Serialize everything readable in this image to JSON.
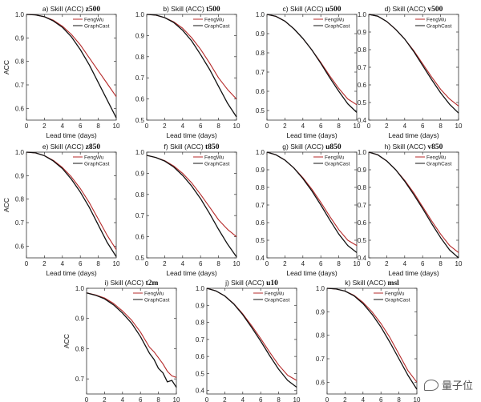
{
  "colors": {
    "fengwu": "#b52a2a",
    "graphcast": "#111111"
  },
  "legend_labels": [
    "FengWu",
    "GraphCast"
  ],
  "watermark": "量子位",
  "chart_data": [
    {
      "type": "line",
      "panel_label": "a) Skill (ACC) ",
      "variable": "z500",
      "ylabel": "ACC",
      "xlabel": "Lead time (days)",
      "xlim": [
        0,
        10
      ],
      "ylim": [
        0.55,
        1.0
      ],
      "yticks": [
        "0.6",
        "0.7",
        "0.8",
        "0.9",
        "1.0"
      ],
      "xticks": [
        "0",
        "2",
        "4",
        "6",
        "8",
        "10"
      ],
      "x": [
        0,
        1,
        2,
        3,
        4,
        5,
        6,
        7,
        8,
        9,
        10
      ],
      "series": [
        {
          "name": "FengWu",
          "values": [
            1.0,
            0.998,
            0.99,
            0.975,
            0.95,
            0.915,
            0.87,
            0.815,
            0.76,
            0.705,
            0.65
          ]
        },
        {
          "name": "GraphCast",
          "values": [
            1.0,
            0.998,
            0.99,
            0.972,
            0.945,
            0.905,
            0.85,
            0.785,
            0.71,
            0.635,
            0.56
          ]
        }
      ]
    },
    {
      "type": "line",
      "panel_label": "b) Skill (ACC) ",
      "variable": "t500",
      "ylabel": "",
      "xlabel": "Lead time (days)",
      "xlim": [
        0,
        10
      ],
      "ylim": [
        0.5,
        1.0
      ],
      "yticks": [
        "0.5",
        "0.6",
        "0.7",
        "0.8",
        "0.9",
        "1.0"
      ],
      "xticks": [
        "0",
        "2",
        "4",
        "6",
        "8",
        "10"
      ],
      "x": [
        0,
        1,
        2,
        3,
        4,
        5,
        6,
        7,
        8,
        9,
        10
      ],
      "series": [
        {
          "name": "FengWu",
          "values": [
            1.0,
            0.997,
            0.985,
            0.965,
            0.935,
            0.89,
            0.835,
            0.77,
            0.7,
            0.645,
            0.6
          ]
        },
        {
          "name": "GraphCast",
          "values": [
            1.0,
            0.997,
            0.985,
            0.962,
            0.925,
            0.875,
            0.81,
            0.74,
            0.66,
            0.58,
            0.515
          ]
        }
      ]
    },
    {
      "type": "line",
      "panel_label": "c) Skill (ACC) ",
      "variable": "u500",
      "ylabel": "",
      "xlabel": "Lead time (days)",
      "xlim": [
        0,
        10
      ],
      "ylim": [
        0.45,
        1.0
      ],
      "yticks": [
        "0.5",
        "0.6",
        "0.7",
        "0.8",
        "0.9",
        "1.0"
      ],
      "xticks": [
        "0",
        "2",
        "4",
        "6",
        "8",
        "10"
      ],
      "x": [
        0,
        1,
        2,
        3,
        4,
        5,
        6,
        7,
        8,
        9,
        10
      ],
      "series": [
        {
          "name": "FengWu",
          "values": [
            1.0,
            0.99,
            0.965,
            0.925,
            0.875,
            0.815,
            0.75,
            0.68,
            0.615,
            0.56,
            0.53
          ]
        },
        {
          "name": "GraphCast",
          "values": [
            1.0,
            0.99,
            0.965,
            0.925,
            0.875,
            0.815,
            0.745,
            0.67,
            0.6,
            0.535,
            0.49
          ]
        }
      ]
    },
    {
      "type": "line",
      "panel_label": "d) Skill (ACC) ",
      "variable": "v500",
      "ylabel": "",
      "xlabel": "Lead time (days)",
      "xlim": [
        0,
        10
      ],
      "ylim": [
        0.4,
        1.0
      ],
      "yticks": [
        "0.4",
        "0.5",
        "0.6",
        "0.7",
        "0.8",
        "0.9",
        "1.0"
      ],
      "xticks": [
        "0",
        "2",
        "4",
        "6",
        "8",
        "10"
      ],
      "x": [
        0,
        1,
        2,
        3,
        4,
        5,
        6,
        7,
        8,
        9,
        10
      ],
      "series": [
        {
          "name": "FengWu",
          "values": [
            1.0,
            0.99,
            0.96,
            0.915,
            0.86,
            0.795,
            0.72,
            0.645,
            0.575,
            0.52,
            0.48
          ]
        },
        {
          "name": "GraphCast",
          "values": [
            1.0,
            0.99,
            0.96,
            0.915,
            0.86,
            0.79,
            0.71,
            0.63,
            0.555,
            0.49,
            0.44
          ]
        }
      ]
    },
    {
      "type": "line",
      "panel_label": "e) Skill (ACC) ",
      "variable": "z850",
      "ylabel": "ACC",
      "xlabel": "Lead time (days)",
      "xlim": [
        0,
        10
      ],
      "ylim": [
        0.55,
        1.0
      ],
      "yticks": [
        "0.6",
        "0.7",
        "0.8",
        "0.9",
        "1.0"
      ],
      "xticks": [
        "0",
        "2",
        "4",
        "6",
        "8",
        "10"
      ],
      "x": [
        0,
        1,
        2,
        3,
        4,
        5,
        6,
        7,
        8,
        9,
        10
      ],
      "series": [
        {
          "name": "FengWu",
          "values": [
            1.0,
            0.997,
            0.985,
            0.965,
            0.935,
            0.895,
            0.845,
            0.785,
            0.715,
            0.645,
            0.585
          ]
        },
        {
          "name": "GraphCast",
          "values": [
            1.0,
            0.997,
            0.985,
            0.962,
            0.93,
            0.885,
            0.83,
            0.765,
            0.69,
            0.615,
            0.555
          ]
        }
      ]
    },
    {
      "type": "line",
      "panel_label": "f) Skill (ACC) ",
      "variable": "t850",
      "ylabel": "",
      "xlabel": "Lead time (days)",
      "xlim": [
        0,
        10
      ],
      "ylim": [
        0.5,
        1.0
      ],
      "yticks": [
        "0.5",
        "0.6",
        "0.7",
        "0.8",
        "0.9",
        "1.0"
      ],
      "xticks": [
        "0",
        "2",
        "4",
        "6",
        "8",
        "10"
      ],
      "x": [
        0,
        1,
        2,
        3,
        4,
        5,
        6,
        7,
        8,
        9,
        10
      ],
      "series": [
        {
          "name": "FengWu",
          "values": [
            0.985,
            0.975,
            0.96,
            0.935,
            0.9,
            0.855,
            0.8,
            0.74,
            0.68,
            0.635,
            0.6
          ]
        },
        {
          "name": "GraphCast",
          "values": [
            0.985,
            0.975,
            0.958,
            0.93,
            0.89,
            0.84,
            0.78,
            0.71,
            0.635,
            0.565,
            0.505
          ]
        }
      ]
    },
    {
      "type": "line",
      "panel_label": "g) Skill (ACC) ",
      "variable": "u850",
      "ylabel": "",
      "xlabel": "Lead time (days)",
      "xlim": [
        0,
        10
      ],
      "ylim": [
        0.4,
        1.0
      ],
      "yticks": [
        "0.4",
        "0.5",
        "0.6",
        "0.7",
        "0.8",
        "0.9",
        "1.0"
      ],
      "xticks": [
        "0",
        "2",
        "4",
        "6",
        "8",
        "10"
      ],
      "x": [
        0,
        1,
        2,
        3,
        4,
        5,
        6,
        7,
        8,
        9,
        10
      ],
      "series": [
        {
          "name": "FengWu",
          "values": [
            1.0,
            0.985,
            0.955,
            0.91,
            0.855,
            0.79,
            0.715,
            0.635,
            0.56,
            0.5,
            0.47
          ]
        },
        {
          "name": "GraphCast",
          "values": [
            1.0,
            0.985,
            0.955,
            0.91,
            0.85,
            0.78,
            0.7,
            0.615,
            0.535,
            0.47,
            0.43
          ]
        }
      ]
    },
    {
      "type": "line",
      "panel_label": "h) Skill (ACC) ",
      "variable": "v850",
      "ylabel": "",
      "xlabel": "Lead time (days)",
      "xlim": [
        0,
        10
      ],
      "ylim": [
        0.4,
        1.0
      ],
      "yticks": [
        "0.4",
        "0.5",
        "0.6",
        "0.7",
        "0.8",
        "0.9",
        "1.0"
      ],
      "xticks": [
        "0",
        "2",
        "4",
        "6",
        "8",
        "10"
      ],
      "x": [
        0,
        1,
        2,
        3,
        4,
        5,
        6,
        7,
        8,
        9,
        10
      ],
      "series": [
        {
          "name": "FengWu",
          "values": [
            1.0,
            0.985,
            0.95,
            0.9,
            0.84,
            0.77,
            0.69,
            0.61,
            0.535,
            0.47,
            0.43
          ]
        },
        {
          "name": "GraphCast",
          "values": [
            1.0,
            0.985,
            0.95,
            0.9,
            0.835,
            0.76,
            0.68,
            0.595,
            0.515,
            0.445,
            0.4
          ]
        }
      ]
    },
    {
      "type": "line",
      "panel_label": "i) Skill (ACC) ",
      "variable": "t2m",
      "ylabel": "ACC",
      "xlabel": "Lead time (days)",
      "xlim": [
        0,
        10
      ],
      "ylim": [
        0.65,
        1.0
      ],
      "yticks": [
        "0.7",
        "0.8",
        "0.9",
        "1.0"
      ],
      "xticks": [
        "0",
        "2",
        "4",
        "6",
        "8",
        "10"
      ],
      "x": [
        0,
        1,
        2,
        3,
        4,
        5,
        6,
        7,
        7.5,
        8,
        8.5,
        9,
        9.5,
        10
      ],
      "series": [
        {
          "name": "FengWu",
          "values": [
            0.985,
            0.978,
            0.968,
            0.95,
            0.925,
            0.895,
            0.855,
            0.805,
            0.79,
            0.77,
            0.75,
            0.725,
            0.71,
            0.705
          ]
        },
        {
          "name": "GraphCast",
          "values": [
            0.985,
            0.977,
            0.965,
            0.945,
            0.918,
            0.885,
            0.84,
            0.785,
            0.765,
            0.735,
            0.72,
            0.69,
            0.695,
            0.672
          ]
        }
      ]
    },
    {
      "type": "line",
      "panel_label": "j) Skill (ACC) ",
      "variable": "u10",
      "ylabel": "",
      "xlabel": "Lead time (days)",
      "xlim": [
        0,
        10
      ],
      "ylim": [
        0.38,
        1.0
      ],
      "yticks": [
        "0.4",
        "0.5",
        "0.6",
        "0.7",
        "0.8",
        "0.9",
        "1.0"
      ],
      "xticks": [
        "0",
        "2",
        "4",
        "6",
        "8",
        "10"
      ],
      "x": [
        0,
        1,
        2,
        3,
        4,
        5,
        6,
        7,
        8,
        9,
        10
      ],
      "series": [
        {
          "name": "FengWu",
          "values": [
            1.0,
            0.985,
            0.955,
            0.91,
            0.85,
            0.78,
            0.705,
            0.625,
            0.55,
            0.49,
            0.46
          ]
        },
        {
          "name": "GraphCast",
          "values": [
            1.0,
            0.985,
            0.955,
            0.908,
            0.845,
            0.77,
            0.69,
            0.605,
            0.525,
            0.46,
            0.42
          ]
        }
      ]
    },
    {
      "type": "line",
      "panel_label": "k) Skill (ACC) ",
      "variable": "msl",
      "ylabel": "",
      "xlabel": "Lead time (days)",
      "xlim": [
        0,
        10
      ],
      "ylim": [
        0.55,
        1.0
      ],
      "yticks": [
        "0.6",
        "0.7",
        "0.8",
        "0.9",
        "1.0"
      ],
      "xticks": [
        "0",
        "2",
        "4",
        "6",
        "8",
        "10"
      ],
      "x": [
        0,
        1,
        2,
        3,
        4,
        5,
        6,
        7,
        8,
        9,
        10
      ],
      "series": [
        {
          "name": "FengWu",
          "values": [
            1.0,
            0.997,
            0.988,
            0.97,
            0.94,
            0.9,
            0.85,
            0.79,
            0.72,
            0.65,
            0.6
          ]
        },
        {
          "name": "GraphCast",
          "values": [
            1.0,
            0.997,
            0.988,
            0.968,
            0.935,
            0.89,
            0.835,
            0.77,
            0.7,
            0.63,
            0.57
          ]
        }
      ]
    }
  ]
}
